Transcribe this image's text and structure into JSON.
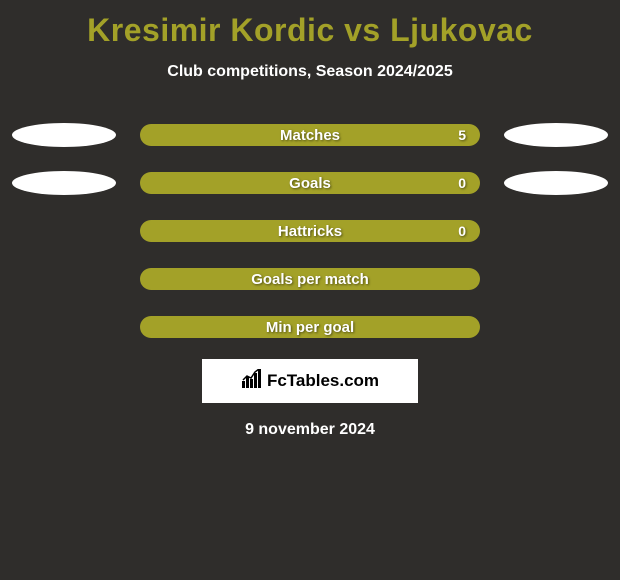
{
  "background_color": "#2f2d2b",
  "title": {
    "text": "Kresimir Kordic vs Ljukovac",
    "color": "#a3a128",
    "fontsize": 32,
    "fontweight": 800
  },
  "subtitle": {
    "text": "Club competitions, Season 2024/2025",
    "color": "#ffffff",
    "fontsize": 16,
    "fontweight": 700
  },
  "stats": {
    "pill_color": "#a3a128",
    "pill_width": 340,
    "pill_height": 22,
    "pill_radius": 11,
    "label_color": "#ffffff",
    "ellipse_color": "#ffffff",
    "ellipse_width": 104,
    "ellipse_height": 24,
    "rows": [
      {
        "id": "matches",
        "label": "Matches",
        "left": "",
        "right": "5",
        "show_left_ellipse": true,
        "show_right_ellipse": true
      },
      {
        "id": "goals",
        "label": "Goals",
        "left": "",
        "right": "0",
        "show_left_ellipse": true,
        "show_right_ellipse": true
      },
      {
        "id": "hattricks",
        "label": "Hattricks",
        "left": "",
        "right": "0",
        "show_left_ellipse": false,
        "show_right_ellipse": false
      },
      {
        "id": "goals-per-match",
        "label": "Goals per match",
        "left": "",
        "right": "",
        "show_left_ellipse": false,
        "show_right_ellipse": false
      },
      {
        "id": "min-per-goal",
        "label": "Min per goal",
        "left": "",
        "right": "",
        "show_left_ellipse": false,
        "show_right_ellipse": false
      }
    ]
  },
  "brand": {
    "text": "FcTables.com",
    "box_bg": "#ffffff",
    "text_color": "#000000",
    "icon_color": "#000000",
    "fontsize": 17
  },
  "date": {
    "text": "9 november 2024",
    "color": "#ffffff",
    "fontsize": 16
  }
}
